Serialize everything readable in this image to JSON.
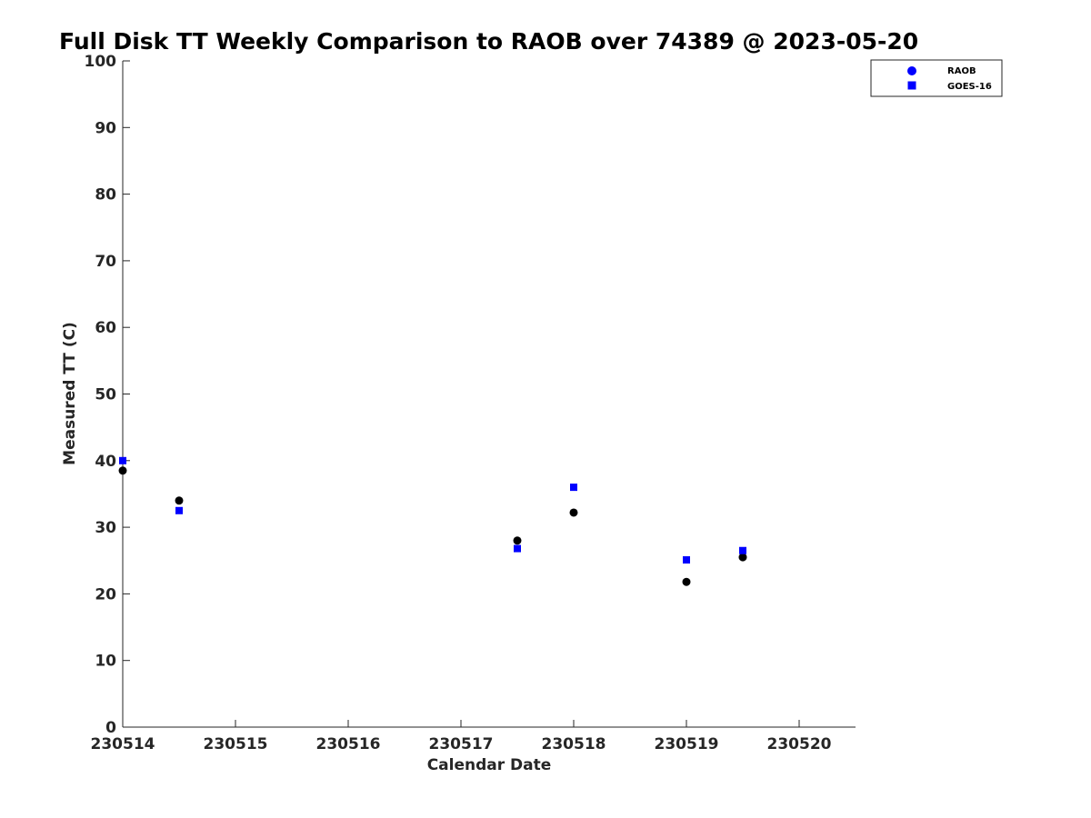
{
  "chart_data": {
    "type": "scatter",
    "title": "Full Disk TT Weekly Comparison to RAOB over 74389 @ 2023-05-20",
    "xlabel": "Calendar Date",
    "ylabel": "Measured TT (C)",
    "xlim": [
      0,
      6.5
    ],
    "ylim": [
      0,
      100
    ],
    "x_ticks": [
      {
        "value": 0,
        "label": "230514"
      },
      {
        "value": 1,
        "label": "230515"
      },
      {
        "value": 2,
        "label": "230516"
      },
      {
        "value": 3,
        "label": "230517"
      },
      {
        "value": 4,
        "label": "230518"
      },
      {
        "value": 5,
        "label": "230519"
      },
      {
        "value": 6,
        "label": "230520"
      }
    ],
    "y_ticks": [
      0,
      10,
      20,
      30,
      40,
      50,
      60,
      70,
      80,
      90,
      100
    ],
    "grid": false,
    "legend_position": "top-right",
    "series": [
      {
        "name": "RAOB",
        "marker": "circle",
        "color": "#000000",
        "legend_color": "#0000ff",
        "points": [
          {
            "x": 0.0,
            "y": 38.5
          },
          {
            "x": 0.5,
            "y": 34.0
          },
          {
            "x": 3.5,
            "y": 28.0
          },
          {
            "x": 4.0,
            "y": 32.2
          },
          {
            "x": 5.0,
            "y": 21.8
          },
          {
            "x": 5.5,
            "y": 25.5
          }
        ]
      },
      {
        "name": "GOES-16",
        "marker": "square",
        "color": "#0000ff",
        "legend_color": "#0000ff",
        "points": [
          {
            "x": 0.0,
            "y": 40.0
          },
          {
            "x": 0.5,
            "y": 32.5
          },
          {
            "x": 3.5,
            "y": 26.8
          },
          {
            "x": 4.0,
            "y": 36.0
          },
          {
            "x": 5.0,
            "y": 25.1
          },
          {
            "x": 5.5,
            "y": 26.5
          }
        ]
      }
    ]
  }
}
